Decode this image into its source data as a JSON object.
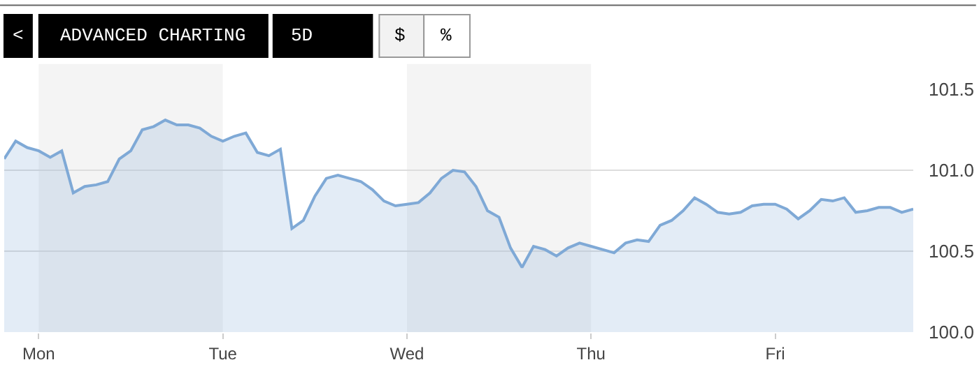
{
  "chart_data": {
    "type": "area",
    "annotations": [
      "<",
      "ADVANCED CHARTING",
      "5D",
      "$",
      "%"
    ],
    "categories": [
      null,
      null,
      null,
      "Mon",
      null,
      null,
      null,
      null,
      null,
      null,
      null,
      null,
      null,
      null,
      null,
      null,
      null,
      null,
      null,
      "Tue",
      null,
      null,
      null,
      null,
      null,
      null,
      null,
      null,
      null,
      null,
      null,
      null,
      null,
      null,
      null,
      "Wed",
      null,
      null,
      null,
      null,
      null,
      null,
      null,
      null,
      null,
      null,
      null,
      null,
      null,
      null,
      null,
      "Thu",
      null,
      null,
      null,
      null,
      null,
      null,
      null,
      null,
      null,
      null,
      null,
      null,
      null,
      null,
      null,
      "Fri",
      null,
      null,
      null,
      null,
      null,
      null,
      null,
      null,
      null,
      null,
      null,
      null
    ],
    "series": [
      {
        "color": "#7fa9d6",
        "values": [
          101.07,
          101.18,
          101.14,
          101.12,
          101.08,
          101.12,
          100.86,
          100.9,
          100.91,
          100.93,
          101.07,
          101.12,
          101.25,
          101.27,
          101.31,
          101.28,
          101.28,
          101.26,
          101.21,
          101.18,
          101.21,
          101.23,
          101.11,
          101.09,
          101.13,
          100.64,
          100.69,
          100.84,
          100.95,
          100.97,
          100.95,
          100.93,
          100.88,
          100.81,
          100.78,
          100.79,
          100.8,
          100.86,
          100.95,
          101.0,
          100.99,
          100.9,
          100.75,
          100.71,
          100.52,
          100.4,
          100.53,
          100.51,
          100.47,
          100.52,
          100.55,
          100.53,
          100.51,
          100.49,
          100.55,
          100.57,
          100.56,
          100.66,
          100.69,
          100.75,
          100.83,
          100.79,
          100.74,
          100.73,
          100.74,
          100.78,
          100.79,
          100.79,
          100.76,
          100.7,
          100.75,
          100.82,
          100.81,
          100.83,
          100.74,
          100.75,
          100.77,
          100.77,
          100.74,
          100.76
        ]
      }
    ],
    "ylim": [
      100.0,
      101.5
    ],
    "yticks": [
      {
        "value": 100.0,
        "label": "100.0"
      },
      {
        "value": 100.5,
        "label": "100.5"
      },
      {
        "value": 101.0,
        "label": "101.0"
      },
      {
        "value": 101.5,
        "label": "101.5"
      }
    ],
    "bands": [
      {
        "axis": "x",
        "from": "Mon",
        "to": "Tue",
        "color": "#f4f4f4"
      },
      {
        "axis": "x",
        "from": "Wed",
        "to": "Thu",
        "color": "#f4f4f4"
      }
    ],
    "grid": "y"
  }
}
